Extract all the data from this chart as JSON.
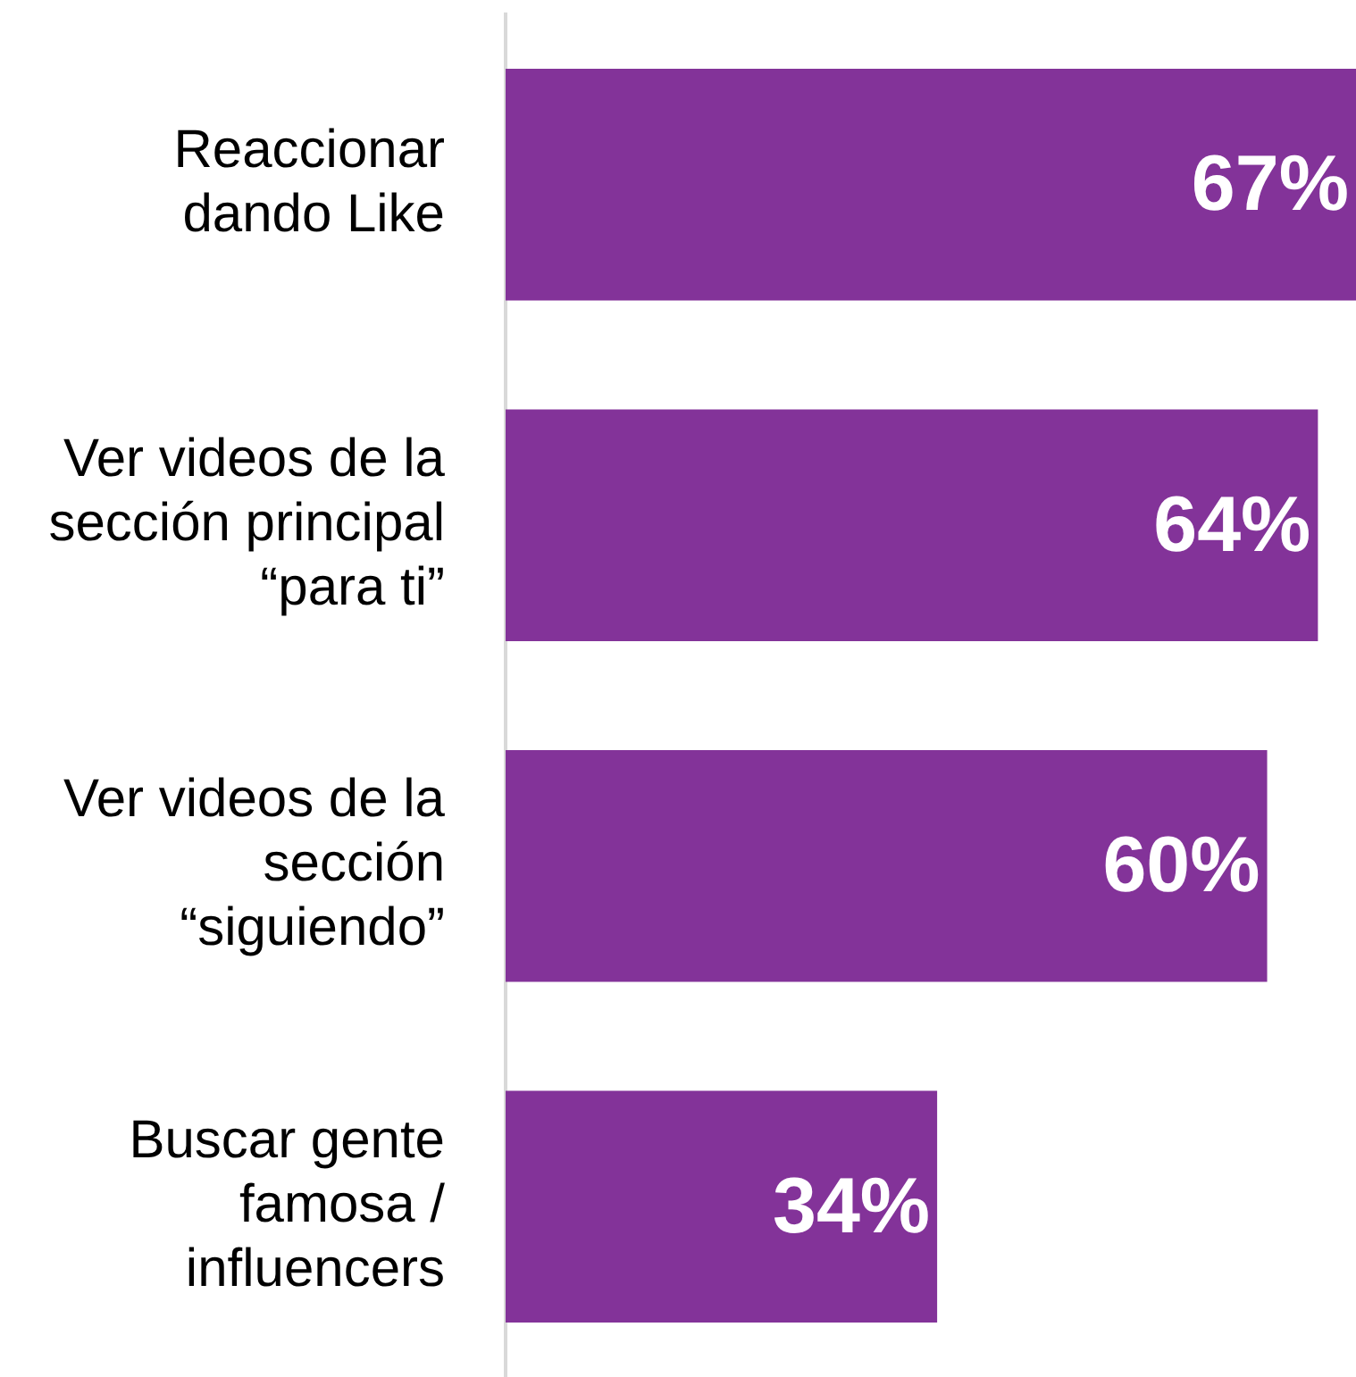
{
  "chart_data": {
    "type": "bar",
    "orientation": "horizontal",
    "categories": [
      "Reaccionar dando Like",
      "Ver videos de la sección principal “para ti”",
      "Ver videos de la sección “siguiendo”",
      "Buscar gente famosa / influencers"
    ],
    "values": [
      67,
      64,
      60,
      34
    ],
    "value_labels": [
      "67%",
      "64%",
      "60%",
      "34%"
    ],
    "color": "#833399"
  }
}
